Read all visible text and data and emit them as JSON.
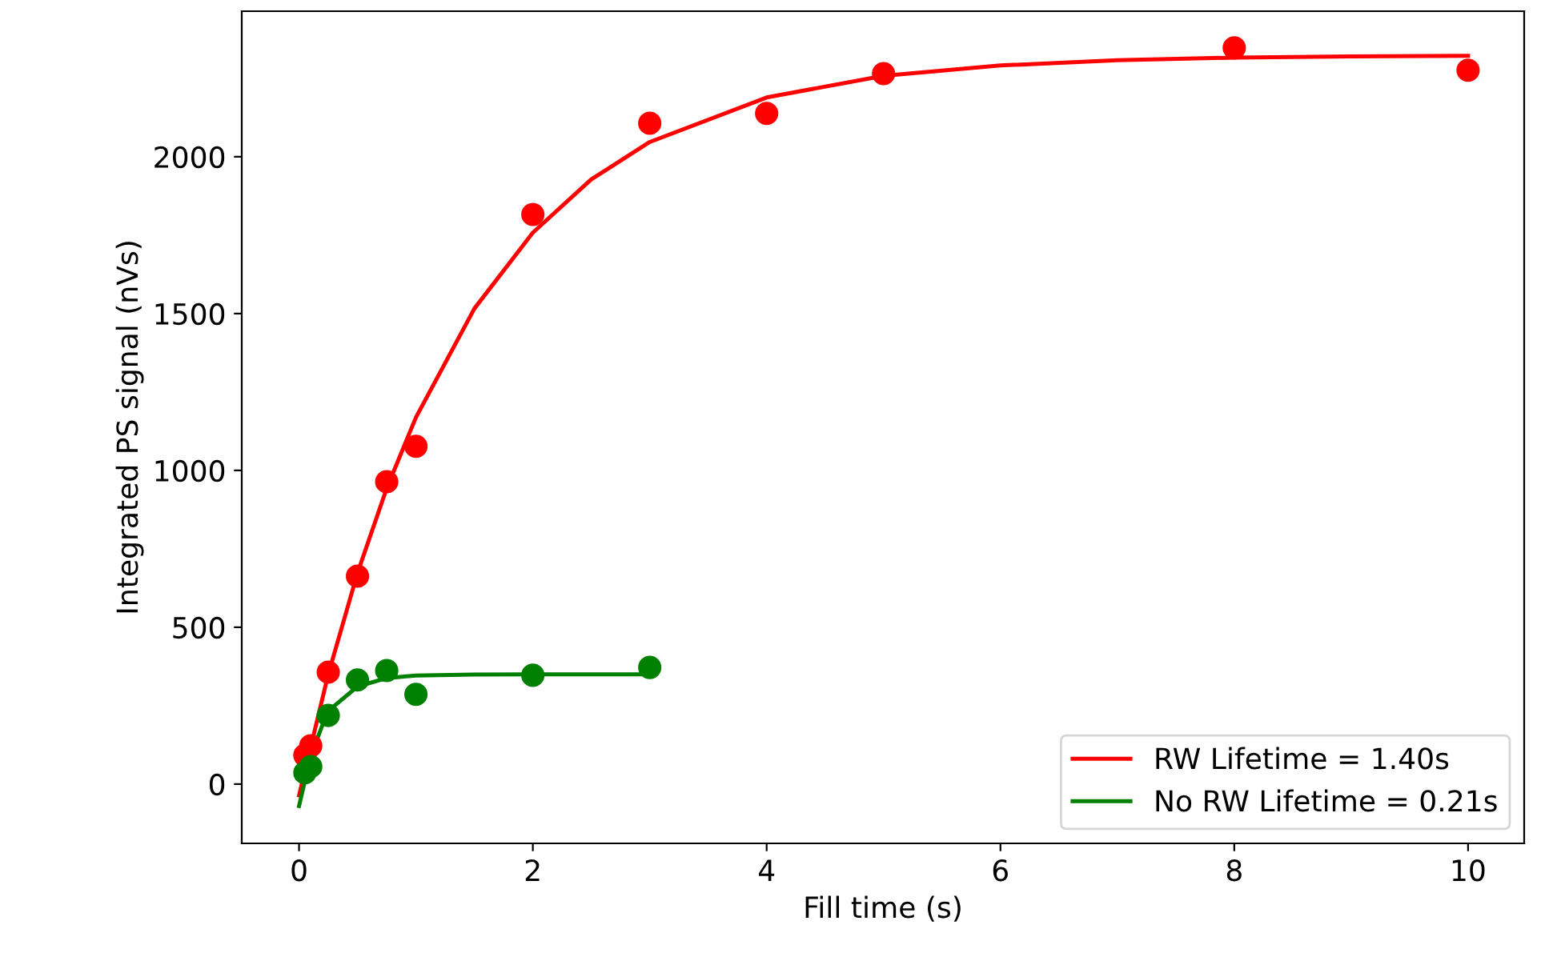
{
  "chart_data": {
    "type": "scatter",
    "xlabel": "Fill time (s)",
    "ylabel": "Integrated PS signal (nVs)",
    "xlim": [
      -0.49,
      10.48
    ],
    "ylim": [
      -189,
      2464
    ],
    "xticks": [
      0,
      2,
      4,
      6,
      8,
      10
    ],
    "yticks": [
      0,
      500,
      1000,
      1500,
      2000
    ],
    "legend": "lower right",
    "grid": false,
    "series": [
      {
        "type": "line",
        "marker": "none",
        "name": "RW Lifetime = 1.40s",
        "color": "#ff0000",
        "x": [
          0,
          0.25,
          0.5,
          0.75,
          1,
          1.5,
          2,
          2.5,
          3,
          4,
          5,
          6,
          7,
          8,
          9,
          10
        ],
        "values": [
          -36,
          350,
          673,
          943,
          1169,
          1516,
          1758,
          1928,
          2047,
          2189,
          2258,
          2291,
          2308,
          2316,
          2320,
          2322
        ]
      },
      {
        "type": "line",
        "marker": "none",
        "name": "No RW Lifetime = 0.21s",
        "color": "#008000",
        "x": [
          0,
          0.1,
          0.2,
          0.3,
          0.5,
          0.75,
          1,
          1.5,
          2,
          3
        ],
        "values": [
          -70,
          89,
          188,
          249,
          311,
          338,
          346,
          349,
          350,
          350
        ]
      },
      {
        "marker": "circle",
        "color": "#ff0000",
        "x": [
          0.05,
          0.1,
          0.25,
          0.5,
          0.75,
          1,
          2,
          3,
          4,
          5,
          8,
          10
        ],
        "values": [
          92,
          122,
          357,
          663,
          964,
          1077,
          1816,
          2107,
          2138,
          2265,
          2347,
          2276
        ]
      },
      {
        "marker": "circle",
        "color": "#008000",
        "x": [
          0.05,
          0.1,
          0.25,
          0.5,
          0.75,
          1,
          2,
          3
        ],
        "values": [
          36,
          56,
          219,
          332,
          362,
          286,
          347,
          372
        ]
      }
    ]
  }
}
